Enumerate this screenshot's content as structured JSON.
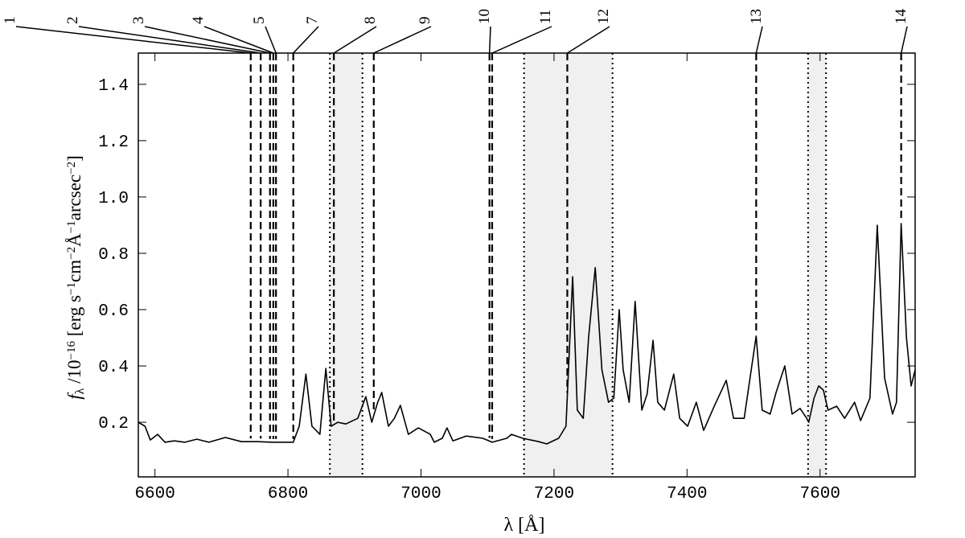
{
  "chart_data": {
    "type": "line",
    "xlabel": "λ  [Å]",
    "ylabel_parts": [
      "f",
      "λ",
      " /10",
      "−16",
      "   [erg s",
      "−1",
      "cm",
      "−2",
      "Å",
      "−1",
      "arcsec",
      "−2",
      "]"
    ],
    "color": "#000000",
    "xlim": [
      6575,
      7743
    ],
    "ylim": [
      0.006,
      1.511
    ],
    "xticks": [
      6600,
      6800,
      7000,
      7200,
      7400,
      7600
    ],
    "yticks": [
      0.2,
      0.4,
      0.6,
      0.8,
      {
        "value": 1,
        "label": "1.0"
      },
      1.2,
      1.4
    ],
    "x": [
      6575,
      6585,
      6593,
      6604,
      6615,
      6629,
      6645,
      6663,
      6681,
      6706,
      6730,
      6754,
      6778,
      6808,
      6817,
      6827,
      6836,
      6848,
      6857,
      6865,
      6875,
      6887,
      6905,
      6917,
      6926,
      6935,
      6941,
      6951,
      6960,
      6969,
      6981,
      6996,
      7014,
      7020,
      7032,
      7039,
      7048,
      7068,
      7093,
      7107,
      7129,
      7136,
      7153,
      7177,
      7189,
      7207,
      7218,
      7228,
      7235,
      7244,
      7252,
      7262,
      7272,
      7282,
      7290,
      7298,
      7304,
      7313,
      7322,
      7332,
      7340,
      7349,
      7356,
      7366,
      7380,
      7389,
      7401,
      7414,
      7425,
      7441,
      7459,
      7470,
      7486,
      7504,
      7513,
      7525,
      7534,
      7547,
      7558,
      7570,
      7580,
      7583,
      7591,
      7598,
      7605,
      7612,
      7625,
      7637,
      7652,
      7661,
      7675,
      7686,
      7697,
      7709,
      7715,
      7722,
      7730,
      7737,
      7743
    ],
    "values": [
      0.2,
      0.186,
      0.137,
      0.157,
      0.129,
      0.134,
      0.129,
      0.14,
      0.129,
      0.146,
      0.131,
      0.131,
      0.129,
      0.129,
      0.186,
      0.371,
      0.186,
      0.157,
      0.391,
      0.186,
      0.2,
      0.194,
      0.214,
      0.291,
      0.2,
      0.271,
      0.306,
      0.186,
      0.214,
      0.26,
      0.157,
      0.18,
      0.157,
      0.129,
      0.143,
      0.18,
      0.134,
      0.151,
      0.143,
      0.129,
      0.143,
      0.157,
      0.143,
      0.131,
      0.123,
      0.143,
      0.186,
      0.717,
      0.243,
      0.214,
      0.5,
      0.749,
      0.386,
      0.271,
      0.286,
      0.6,
      0.386,
      0.271,
      0.629,
      0.243,
      0.3,
      0.491,
      0.271,
      0.243,
      0.371,
      0.214,
      0.186,
      0.271,
      0.171,
      0.257,
      0.349,
      0.214,
      0.214,
      0.506,
      0.243,
      0.229,
      0.306,
      0.4,
      0.229,
      0.249,
      0.214,
      0.2,
      0.286,
      0.329,
      0.314,
      0.243,
      0.257,
      0.214,
      0.271,
      0.206,
      0.286,
      0.9,
      0.357,
      0.229,
      0.271,
      0.906,
      0.5,
      0.329,
      0.386
    ],
    "regions": [
      [
        6863,
        6912
      ],
      [
        7155,
        7288
      ],
      [
        7582,
        7609
      ]
    ],
    "lines": [
      {
        "label": "1",
        "wavelength": 6744
      },
      {
        "label": "2",
        "wavelength": 6759
      },
      {
        "label": "3",
        "wavelength": 6773
      },
      {
        "label": "4",
        "wavelength": 6778
      },
      {
        "label": "5",
        "wavelength": 6782
      },
      {
        "label": "7",
        "wavelength": 6808
      },
      {
        "label": "8",
        "wavelength": 6869
      },
      {
        "label": "9",
        "wavelength": 6929
      },
      {
        "label": "10",
        "wavelength": 7103
      },
      {
        "label": "11",
        "wavelength": 7107
      },
      {
        "label": "12",
        "wavelength": 7220
      },
      {
        "label": "13",
        "wavelength": 7504
      },
      {
        "label": "14",
        "wavelength": 7722
      }
    ]
  }
}
